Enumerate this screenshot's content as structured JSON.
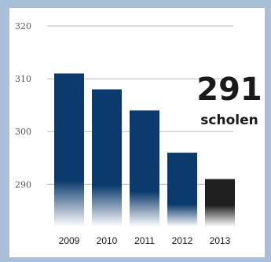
{
  "chart_data": {
    "type": "bar",
    "title": "",
    "xlabel": "",
    "ylabel": "",
    "categories": [
      "2009",
      "2010",
      "2011",
      "2012",
      "2013"
    ],
    "values": [
      311,
      308,
      304,
      296,
      291
    ],
    "ylim": [
      282,
      320
    ],
    "yticks": [
      "320",
      "310",
      "300",
      "290"
    ],
    "grid": true,
    "bar_colors": [
      "#0b3a6e",
      "#0b3a6e",
      "#0b3a6e",
      "#0b3a6e",
      "#1f1f1f"
    ],
    "annotation": {
      "value": "291",
      "label": "scholen"
    }
  }
}
